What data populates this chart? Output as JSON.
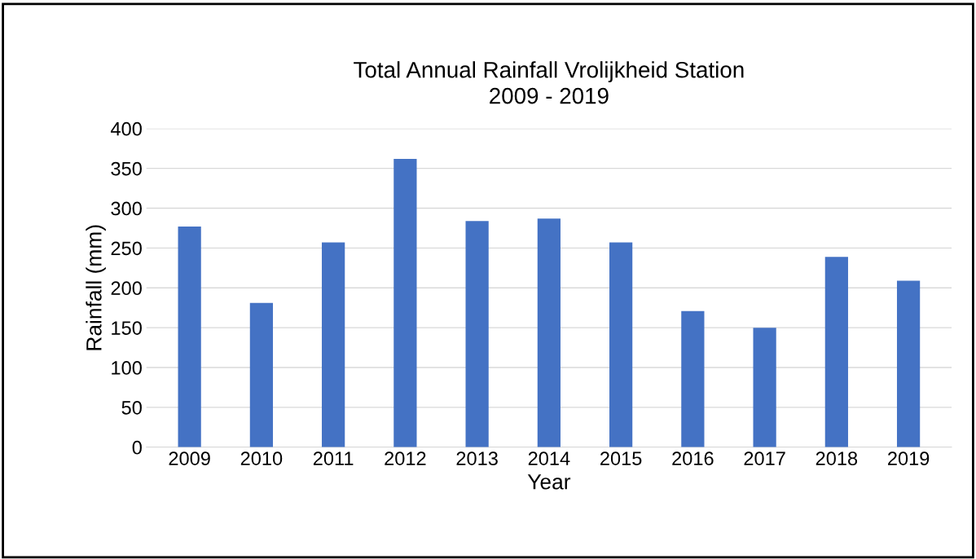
{
  "chart_data": {
    "type": "bar",
    "title": "Total Annual Rainfall Vrolijkheid Station\n2009 - 2019",
    "xlabel": "Year",
    "ylabel": "Rainfall (mm)",
    "categories": [
      "2009",
      "2010",
      "2011",
      "2012",
      "2013",
      "2014",
      "2015",
      "2016",
      "2017",
      "2018",
      "2019"
    ],
    "values": [
      277,
      181,
      257,
      362,
      284,
      287,
      257,
      171,
      150,
      239,
      209
    ],
    "color": "#4472c4",
    "ylim": [
      0,
      400
    ],
    "yticks": [
      0,
      50,
      100,
      150,
      200,
      250,
      300,
      350,
      400
    ],
    "grid": "y"
  }
}
